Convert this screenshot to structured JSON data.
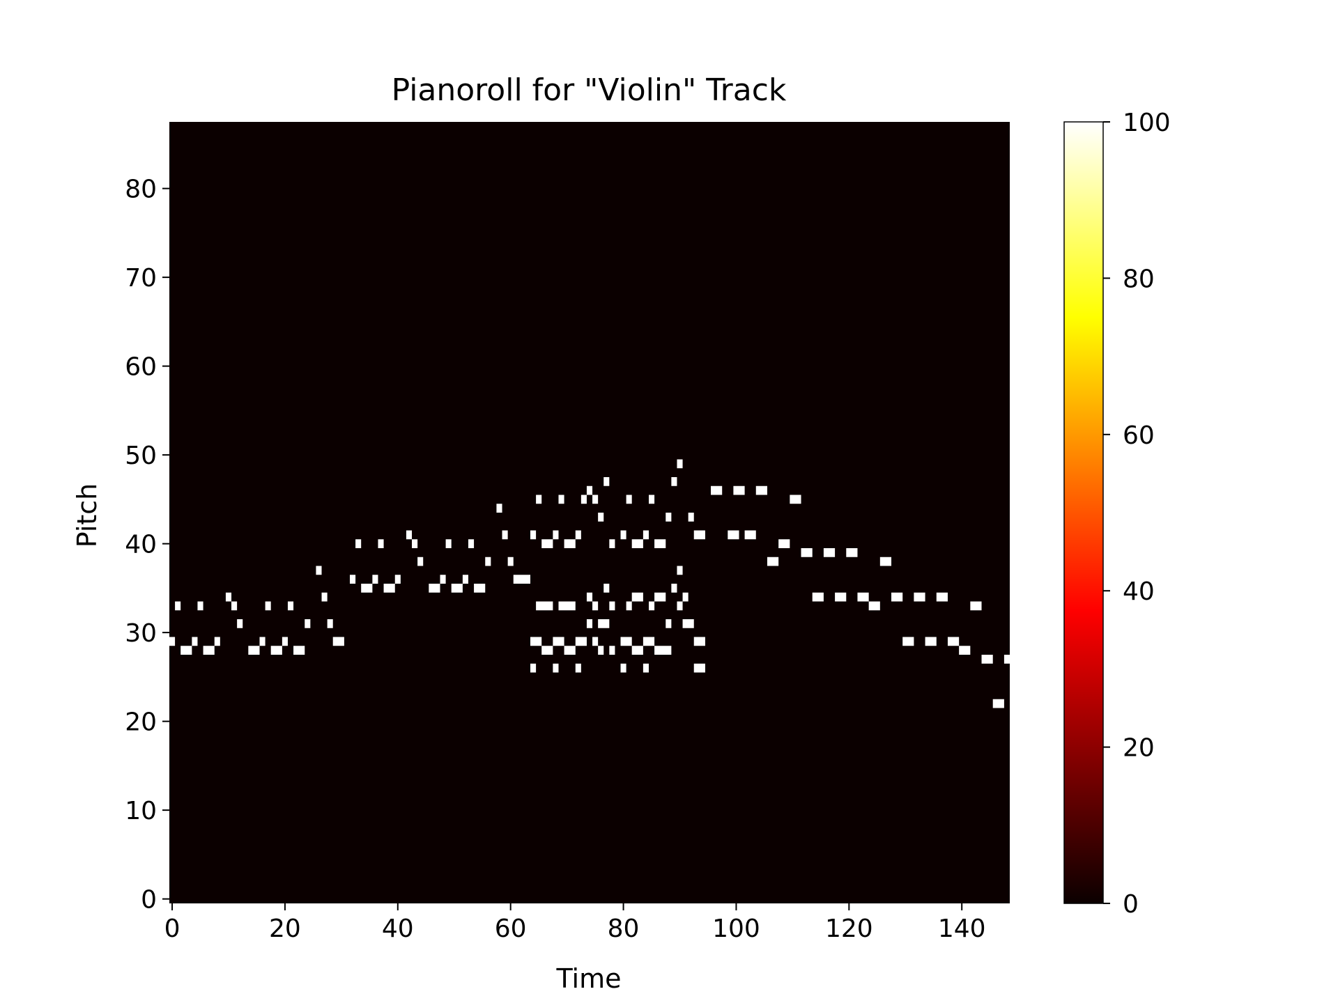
{
  "chart_data": {
    "type": "heatmap",
    "title": "Pianoroll for \"Violin\" Track",
    "xlabel": "Time",
    "ylabel": "Pitch",
    "xlim": [
      -0.5,
      148.5
    ],
    "ylim": [
      -0.5,
      87.5
    ],
    "xticks": [
      0,
      20,
      40,
      60,
      80,
      100,
      120,
      140
    ],
    "yticks": [
      0,
      10,
      20,
      30,
      40,
      50,
      60,
      70,
      80
    ],
    "colormap": "hot",
    "background_color": "#0b0000",
    "note_color": "#ffffff",
    "colorbar": {
      "min": 0,
      "max": 100,
      "ticks": [
        0,
        20,
        40,
        60,
        80,
        100
      ],
      "colors": [
        "#0b0000",
        "#ff0000",
        "#ffff00",
        "#ffffff"
      ]
    },
    "notes": [
      {
        "t": 0,
        "p": 29,
        "d": 1,
        "v": 100
      },
      {
        "t": 1,
        "p": 33,
        "d": 1,
        "v": 100
      },
      {
        "t": 2,
        "p": 28,
        "d": 2,
        "v": 100
      },
      {
        "t": 4,
        "p": 29,
        "d": 1,
        "v": 100
      },
      {
        "t": 5,
        "p": 33,
        "d": 1,
        "v": 100
      },
      {
        "t": 6,
        "p": 28,
        "d": 2,
        "v": 100
      },
      {
        "t": 8,
        "p": 29,
        "d": 1,
        "v": 100
      },
      {
        "t": 10,
        "p": 34,
        "d": 1,
        "v": 100
      },
      {
        "t": 11,
        "p": 33,
        "d": 1,
        "v": 100
      },
      {
        "t": 12,
        "p": 31,
        "d": 1,
        "v": 100
      },
      {
        "t": 14,
        "p": 28,
        "d": 2,
        "v": 100
      },
      {
        "t": 16,
        "p": 29,
        "d": 1,
        "v": 100
      },
      {
        "t": 17,
        "p": 33,
        "d": 1,
        "v": 100
      },
      {
        "t": 18,
        "p": 28,
        "d": 2,
        "v": 100
      },
      {
        "t": 20,
        "p": 29,
        "d": 1,
        "v": 100
      },
      {
        "t": 21,
        "p": 33,
        "d": 1,
        "v": 100
      },
      {
        "t": 22,
        "p": 28,
        "d": 2,
        "v": 100
      },
      {
        "t": 24,
        "p": 31,
        "d": 1,
        "v": 100
      },
      {
        "t": 26,
        "p": 37,
        "d": 1,
        "v": 100
      },
      {
        "t": 27,
        "p": 34,
        "d": 1,
        "v": 100
      },
      {
        "t": 28,
        "p": 31,
        "d": 1,
        "v": 100
      },
      {
        "t": 29,
        "p": 29,
        "d": 2,
        "v": 100
      },
      {
        "t": 32,
        "p": 36,
        "d": 1,
        "v": 100
      },
      {
        "t": 33,
        "p": 40,
        "d": 1,
        "v": 100
      },
      {
        "t": 34,
        "p": 35,
        "d": 2,
        "v": 100
      },
      {
        "t": 36,
        "p": 36,
        "d": 1,
        "v": 100
      },
      {
        "t": 37,
        "p": 40,
        "d": 1,
        "v": 100
      },
      {
        "t": 38,
        "p": 35,
        "d": 2,
        "v": 100
      },
      {
        "t": 40,
        "p": 36,
        "d": 1,
        "v": 100
      },
      {
        "t": 42,
        "p": 41,
        "d": 1,
        "v": 100
      },
      {
        "t": 43,
        "p": 40,
        "d": 1,
        "v": 100
      },
      {
        "t": 44,
        "p": 38,
        "d": 1,
        "v": 100
      },
      {
        "t": 46,
        "p": 35,
        "d": 2,
        "v": 100
      },
      {
        "t": 48,
        "p": 36,
        "d": 1,
        "v": 100
      },
      {
        "t": 49,
        "p": 40,
        "d": 1,
        "v": 100
      },
      {
        "t": 50,
        "p": 35,
        "d": 2,
        "v": 100
      },
      {
        "t": 52,
        "p": 36,
        "d": 1,
        "v": 100
      },
      {
        "t": 53,
        "p": 40,
        "d": 1,
        "v": 100
      },
      {
        "t": 54,
        "p": 35,
        "d": 2,
        "v": 100
      },
      {
        "t": 56,
        "p": 38,
        "d": 1,
        "v": 100
      },
      {
        "t": 58,
        "p": 44,
        "d": 1,
        "v": 100
      },
      {
        "t": 59,
        "p": 41,
        "d": 1,
        "v": 100
      },
      {
        "t": 60,
        "p": 38,
        "d": 1,
        "v": 100
      },
      {
        "t": 61,
        "p": 36,
        "d": 3,
        "v": 100
      },
      {
        "t": 64,
        "p": 26,
        "d": 1,
        "v": 100
      },
      {
        "t": 64,
        "p": 29,
        "d": 2,
        "v": 100
      },
      {
        "t": 64,
        "p": 41,
        "d": 1,
        "v": 100
      },
      {
        "t": 65,
        "p": 33,
        "d": 3,
        "v": 100
      },
      {
        "t": 65,
        "p": 45,
        "d": 1,
        "v": 100
      },
      {
        "t": 66,
        "p": 28,
        "d": 2,
        "v": 100
      },
      {
        "t": 66,
        "p": 40,
        "d": 2,
        "v": 100
      },
      {
        "t": 68,
        "p": 26,
        "d": 1,
        "v": 100
      },
      {
        "t": 68,
        "p": 29,
        "d": 2,
        "v": 100
      },
      {
        "t": 68,
        "p": 41,
        "d": 1,
        "v": 100
      },
      {
        "t": 69,
        "p": 33,
        "d": 3,
        "v": 100
      },
      {
        "t": 69,
        "p": 45,
        "d": 1,
        "v": 100
      },
      {
        "t": 70,
        "p": 28,
        "d": 2,
        "v": 100
      },
      {
        "t": 70,
        "p": 40,
        "d": 2,
        "v": 100
      },
      {
        "t": 72,
        "p": 26,
        "d": 1,
        "v": 100
      },
      {
        "t": 72,
        "p": 29,
        "d": 2,
        "v": 100
      },
      {
        "t": 72,
        "p": 41,
        "d": 1,
        "v": 100
      },
      {
        "t": 73,
        "p": 45,
        "d": 1,
        "v": 100
      },
      {
        "t": 74,
        "p": 46,
        "d": 1,
        "v": 100
      },
      {
        "t": 74,
        "p": 34,
        "d": 1,
        "v": 100
      },
      {
        "t": 74,
        "p": 31,
        "d": 1,
        "v": 100
      },
      {
        "t": 75,
        "p": 45,
        "d": 1,
        "v": 100
      },
      {
        "t": 75,
        "p": 33,
        "d": 1,
        "v": 100
      },
      {
        "t": 75,
        "p": 29,
        "d": 1,
        "v": 100
      },
      {
        "t": 76,
        "p": 43,
        "d": 1,
        "v": 100
      },
      {
        "t": 76,
        "p": 31,
        "d": 2,
        "v": 100
      },
      {
        "t": 76,
        "p": 28,
        "d": 1,
        "v": 100
      },
      {
        "t": 77,
        "p": 47,
        "d": 1,
        "v": 100
      },
      {
        "t": 77,
        "p": 35,
        "d": 1,
        "v": 100
      },
      {
        "t": 78,
        "p": 40,
        "d": 1,
        "v": 100
      },
      {
        "t": 78,
        "p": 33,
        "d": 1,
        "v": 100
      },
      {
        "t": 78,
        "p": 28,
        "d": 1,
        "v": 100
      },
      {
        "t": 80,
        "p": 26,
        "d": 1,
        "v": 100
      },
      {
        "t": 80,
        "p": 29,
        "d": 2,
        "v": 100
      },
      {
        "t": 80,
        "p": 41,
        "d": 1,
        "v": 100
      },
      {
        "t": 81,
        "p": 33,
        "d": 1,
        "v": 100
      },
      {
        "t": 81,
        "p": 45,
        "d": 1,
        "v": 100
      },
      {
        "t": 82,
        "p": 34,
        "d": 2,
        "v": 100
      },
      {
        "t": 82,
        "p": 28,
        "d": 2,
        "v": 100
      },
      {
        "t": 82,
        "p": 40,
        "d": 2,
        "v": 100
      },
      {
        "t": 84,
        "p": 26,
        "d": 1,
        "v": 100
      },
      {
        "t": 84,
        "p": 29,
        "d": 2,
        "v": 100
      },
      {
        "t": 84,
        "p": 41,
        "d": 1,
        "v": 100
      },
      {
        "t": 85,
        "p": 33,
        "d": 1,
        "v": 100
      },
      {
        "t": 85,
        "p": 45,
        "d": 1,
        "v": 100
      },
      {
        "t": 86,
        "p": 34,
        "d": 2,
        "v": 100
      },
      {
        "t": 86,
        "p": 28,
        "d": 3,
        "v": 100
      },
      {
        "t": 86,
        "p": 40,
        "d": 2,
        "v": 100
      },
      {
        "t": 88,
        "p": 31,
        "d": 1,
        "v": 100
      },
      {
        "t": 88,
        "p": 43,
        "d": 1,
        "v": 100
      },
      {
        "t": 89,
        "p": 47,
        "d": 1,
        "v": 100
      },
      {
        "t": 89,
        "p": 35,
        "d": 1,
        "v": 100
      },
      {
        "t": 90,
        "p": 49,
        "d": 1,
        "v": 100
      },
      {
        "t": 90,
        "p": 37,
        "d": 1,
        "v": 100
      },
      {
        "t": 90,
        "p": 33,
        "d": 1,
        "v": 100
      },
      {
        "t": 91,
        "p": 34,
        "d": 1,
        "v": 100
      },
      {
        "t": 91,
        "p": 31,
        "d": 2,
        "v": 100
      },
      {
        "t": 92,
        "p": 43,
        "d": 1,
        "v": 100
      },
      {
        "t": 93,
        "p": 41,
        "d": 2,
        "v": 100
      },
      {
        "t": 93,
        "p": 29,
        "d": 2,
        "v": 100
      },
      {
        "t": 93,
        "p": 26,
        "d": 2,
        "v": 100
      },
      {
        "t": 96,
        "p": 46,
        "d": 2,
        "v": 100
      },
      {
        "t": 99,
        "p": 41,
        "d": 2,
        "v": 100
      },
      {
        "t": 100,
        "p": 46,
        "d": 2,
        "v": 100
      },
      {
        "t": 102,
        "p": 41,
        "d": 2,
        "v": 100
      },
      {
        "t": 104,
        "p": 46,
        "d": 2,
        "v": 100
      },
      {
        "t": 106,
        "p": 38,
        "d": 2,
        "v": 100
      },
      {
        "t": 108,
        "p": 40,
        "d": 2,
        "v": 100
      },
      {
        "t": 110,
        "p": 45,
        "d": 2,
        "v": 100
      },
      {
        "t": 112,
        "p": 39,
        "d": 2,
        "v": 100
      },
      {
        "t": 114,
        "p": 34,
        "d": 2,
        "v": 100
      },
      {
        "t": 116,
        "p": 39,
        "d": 2,
        "v": 100
      },
      {
        "t": 118,
        "p": 34,
        "d": 2,
        "v": 100
      },
      {
        "t": 120,
        "p": 39,
        "d": 2,
        "v": 100
      },
      {
        "t": 122,
        "p": 34,
        "d": 2,
        "v": 100
      },
      {
        "t": 124,
        "p": 33,
        "d": 2,
        "v": 100
      },
      {
        "t": 126,
        "p": 38,
        "d": 2,
        "v": 100
      },
      {
        "t": 128,
        "p": 34,
        "d": 2,
        "v": 100
      },
      {
        "t": 130,
        "p": 29,
        "d": 2,
        "v": 100
      },
      {
        "t": 132,
        "p": 34,
        "d": 2,
        "v": 100
      },
      {
        "t": 134,
        "p": 29,
        "d": 2,
        "v": 100
      },
      {
        "t": 136,
        "p": 34,
        "d": 2,
        "v": 100
      },
      {
        "t": 138,
        "p": 29,
        "d": 2,
        "v": 100
      },
      {
        "t": 140,
        "p": 28,
        "d": 2,
        "v": 100
      },
      {
        "t": 142,
        "p": 33,
        "d": 2,
        "v": 100
      },
      {
        "t": 144,
        "p": 27,
        "d": 2,
        "v": 100
      },
      {
        "t": 146,
        "p": 22,
        "d": 2,
        "v": 100
      },
      {
        "t": 148,
        "p": 27,
        "d": 1,
        "v": 100
      }
    ]
  }
}
